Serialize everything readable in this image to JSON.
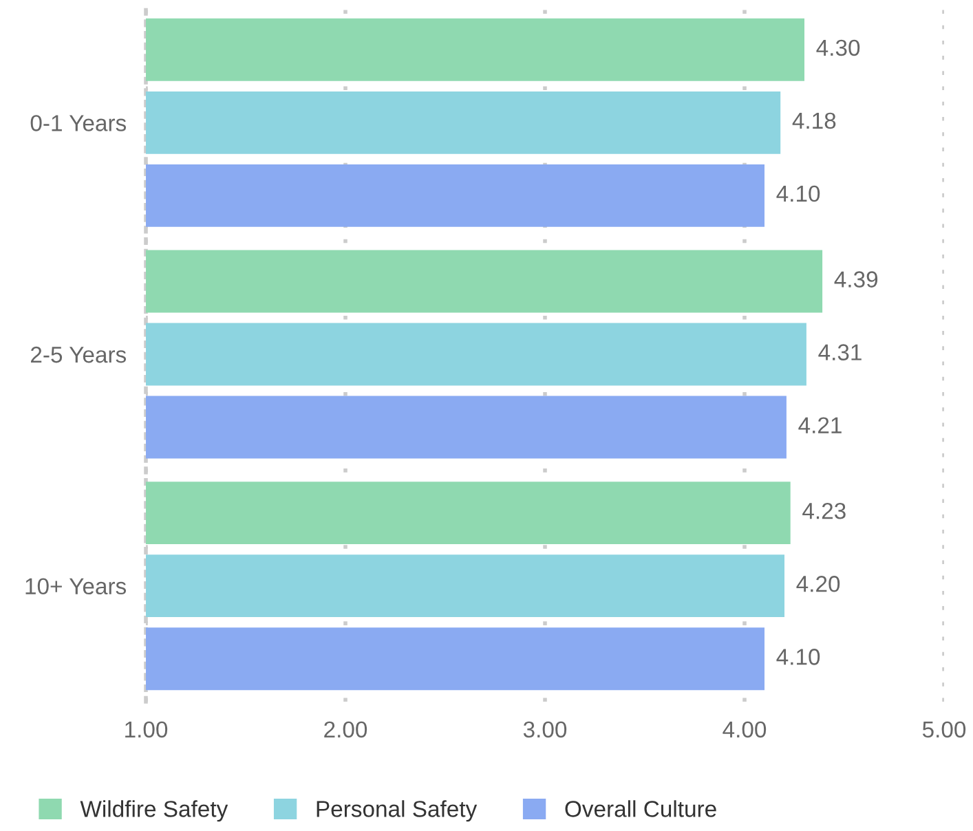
{
  "chart_data": {
    "type": "bar",
    "orientation": "horizontal",
    "categories": [
      "0-1 Years",
      "2-5 Years",
      "10+ Years"
    ],
    "series": [
      {
        "name": "Wildfire Safety",
        "color": "#8fd9b0",
        "values": [
          4.3,
          4.39,
          4.23
        ],
        "value_labels": [
          "4.30",
          "4.39",
          "4.23"
        ]
      },
      {
        "name": "Personal Safety",
        "color": "#8dd4e0",
        "values": [
          4.18,
          4.31,
          4.2
        ],
        "value_labels": [
          "4.18",
          "4.31",
          "4.20"
        ]
      },
      {
        "name": "Overall Culture",
        "color": "#8aaaf2",
        "values": [
          4.1,
          4.21,
          4.1
        ],
        "value_labels": [
          "4.10",
          "4.21",
          "4.10"
        ]
      }
    ],
    "xlim": [
      1,
      5
    ],
    "xticks": [
      {
        "value": 1,
        "label": "1.00"
      },
      {
        "value": 2,
        "label": "2.00"
      },
      {
        "value": 3,
        "label": "3.00"
      },
      {
        "value": 4,
        "label": "4.00"
      },
      {
        "value": 5,
        "label": "5.00"
      }
    ],
    "grid": "x",
    "legend": "bottom"
  }
}
